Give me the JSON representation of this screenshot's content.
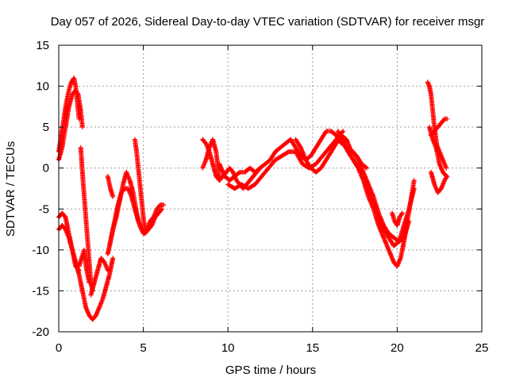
{
  "chart_data": {
    "type": "scatter",
    "title": "Day 057 of 2026, Sidereal Day-to-day VTEC variation (SDTVAR) for receiver msgr",
    "xlabel": "GPS time / hours",
    "ylabel": "SDTVAR / TECUs",
    "xlim": [
      0,
      25
    ],
    "ylim": [
      -20,
      15
    ],
    "xticks": [
      0,
      5,
      10,
      15,
      20,
      25
    ],
    "yticks": [
      -20,
      -15,
      -10,
      -5,
      0,
      5,
      10,
      15
    ],
    "grid": true,
    "marker": "plus",
    "color": "#ff0000",
    "segments": [
      {
        "x": [
          0.0,
          0.2,
          0.4,
          0.6,
          0.8,
          1.0,
          1.15,
          1.3,
          1.4
        ],
        "y": [
          1.0,
          2.5,
          5.0,
          7.5,
          9.0,
          9.5,
          9.0,
          7.0,
          5.0
        ]
      },
      {
        "x": [
          0.0,
          0.15,
          0.3,
          0.45,
          0.6,
          0.75,
          0.9,
          1.0,
          1.1,
          1.2
        ],
        "y": [
          2.0,
          4.0,
          6.0,
          8.0,
          9.5,
          10.5,
          11.0,
          10.0,
          8.0,
          6.0
        ]
      },
      {
        "x": [
          0.0,
          0.2,
          0.4,
          0.6,
          0.8,
          1.0,
          1.2,
          1.4,
          1.6,
          1.8,
          2.0,
          2.2,
          2.4,
          2.6,
          2.8,
          3.0,
          3.2
        ],
        "y": [
          -7.5,
          -7.0,
          -7.5,
          -8.5,
          -10.0,
          -11.5,
          -13.0,
          -15.0,
          -17.0,
          -18.0,
          -18.5,
          -18.0,
          -17.0,
          -16.0,
          -14.5,
          -13.0,
          -11.0
        ]
      },
      {
        "x": [
          0.0,
          0.2,
          0.4,
          0.6,
          0.8,
          1.0,
          1.2
        ],
        "y": [
          -6.0,
          -5.5,
          -6.0,
          -8.0,
          -10.0,
          -12.0,
          -12.5
        ]
      },
      {
        "x": [
          1.2,
          1.35,
          1.5,
          1.65,
          1.8
        ],
        "y": [
          -12.0,
          -11.0,
          -10.0,
          -12.5,
          -14.0
        ]
      },
      {
        "x": [
          1.3,
          1.45,
          1.6,
          1.75,
          1.9,
          2.0
        ],
        "y": [
          2.5,
          -2.0,
          -6.0,
          -10.0,
          -14.0,
          -15.0
        ]
      },
      {
        "x": [
          1.9,
          2.1,
          2.3,
          2.5,
          2.7,
          2.9
        ],
        "y": [
          -15.5,
          -14.0,
          -12.5,
          -11.0,
          -11.5,
          -12.5
        ]
      },
      {
        "x": [
          2.9,
          3.1,
          3.3,
          3.5,
          3.7,
          3.9,
          4.1,
          4.3,
          4.5,
          4.7,
          4.9,
          5.1,
          5.3,
          5.5,
          5.7,
          5.9,
          6.1
        ],
        "y": [
          -10.5,
          -8.5,
          -6.5,
          -4.5,
          -3.0,
          -2.5,
          -2.5,
          -3.5,
          -5.0,
          -6.5,
          -7.5,
          -8.0,
          -7.5,
          -7.0,
          -6.0,
          -5.5,
          -5.0
        ]
      },
      {
        "x": [
          3.0,
          3.2,
          3.4,
          3.6,
          3.8,
          4.0,
          4.2,
          4.4,
          4.6,
          4.8,
          5.0,
          5.2,
          5.4,
          5.6,
          5.8,
          6.0,
          6.2
        ],
        "y": [
          -9.5,
          -7.5,
          -6.0,
          -4.0,
          -2.0,
          -0.5,
          -1.5,
          -3.0,
          -5.5,
          -7.0,
          -8.0,
          -7.5,
          -6.5,
          -6.0,
          -5.0,
          -4.5,
          -4.5
        ]
      },
      {
        "x": [
          2.9,
          3.05,
          3.2
        ],
        "y": [
          -1.0,
          -2.5,
          -3.5
        ]
      },
      {
        "x": [
          4.5,
          4.6,
          4.7,
          4.8,
          4.9,
          5.0,
          5.1
        ],
        "y": [
          3.5,
          2.0,
          0.0,
          -2.0,
          -4.0,
          -6.0,
          -7.5
        ]
      },
      {
        "x": [
          8.5,
          8.7,
          8.9,
          9.1,
          9.3,
          9.5,
          9.7,
          9.9,
          10.1,
          10.3,
          10.5,
          10.7,
          10.9,
          11.1,
          11.3,
          11.5,
          11.7,
          11.9
        ],
        "y": [
          3.5,
          3.0,
          2.0,
          0.5,
          -1.0,
          -1.5,
          -1.0,
          -0.5,
          0.0,
          -0.5,
          -1.5,
          -2.0,
          -2.5,
          -2.0,
          -1.5,
          -1.0,
          -0.5,
          0.0
        ]
      },
      {
        "x": [
          8.5,
          8.7,
          8.9,
          9.1,
          9.3,
          9.5
        ],
        "y": [
          0.0,
          1.0,
          2.5,
          3.5,
          2.0,
          -1.5
        ]
      },
      {
        "x": [
          9.5,
          9.8,
          10.1,
          10.4,
          10.7,
          11.0,
          11.3,
          11.6,
          11.9,
          12.2,
          12.5,
          12.8,
          13.1,
          13.4,
          13.7,
          14.0,
          14.3,
          14.6,
          14.9,
          15.2,
          15.5,
          15.8,
          16.1,
          16.4,
          16.7
        ],
        "y": [
          0.5,
          -1.0,
          -1.5,
          -1.0,
          -0.5,
          -0.5,
          0.0,
          -0.5,
          0.0,
          0.5,
          1.0,
          2.0,
          2.5,
          3.0,
          3.5,
          2.5,
          1.5,
          1.0,
          1.5,
          2.5,
          3.5,
          4.5,
          4.5,
          4.0,
          3.0
        ]
      },
      {
        "x": [
          10.0,
          10.4,
          10.8,
          11.2,
          11.6,
          12.0,
          12.4,
          12.8,
          13.2,
          13.6,
          14.0,
          14.4,
          14.8,
          15.2,
          15.6,
          16.0,
          16.4,
          16.8
        ],
        "y": [
          -2.0,
          -2.5,
          -2.0,
          -2.5,
          -2.0,
          -1.0,
          0.0,
          1.0,
          1.5,
          2.0,
          2.0,
          0.5,
          0.0,
          0.5,
          1.5,
          2.5,
          3.5,
          4.5
        ]
      },
      {
        "x": [
          14.0,
          14.3,
          14.6,
          14.9,
          15.2,
          15.5,
          15.8,
          16.1,
          16.4,
          16.7,
          17.0,
          17.3,
          17.6,
          17.9,
          18.2
        ],
        "y": [
          3.5,
          2.5,
          1.0,
          0.0,
          -0.5,
          0.0,
          1.0,
          2.0,
          3.0,
          4.0,
          3.5,
          2.0,
          1.5,
          0.5,
          0.0
        ]
      },
      {
        "x": [
          16.5,
          16.8,
          17.1,
          17.4,
          17.7,
          18.0,
          18.3,
          18.6,
          18.9,
          19.2,
          19.5,
          19.8,
          20.0,
          20.2,
          20.4,
          20.6,
          20.8,
          21.0
        ],
        "y": [
          4.5,
          3.5,
          2.0,
          1.0,
          0.0,
          -1.5,
          -3.5,
          -5.0,
          -7.0,
          -8.5,
          -10.0,
          -11.5,
          -12.0,
          -11.0,
          -9.0,
          -6.5,
          -4.0,
          -1.5
        ]
      },
      {
        "x": [
          16.8,
          17.1,
          17.4,
          17.7,
          18.0,
          18.3,
          18.6,
          18.9,
          19.2,
          19.5,
          19.8,
          20.1,
          20.4,
          20.7,
          21.0
        ],
        "y": [
          3.0,
          2.0,
          1.0,
          0.0,
          -1.0,
          -2.5,
          -4.0,
          -6.0,
          -7.5,
          -8.5,
          -9.5,
          -9.0,
          -7.0,
          -5.0,
          -2.5
        ]
      },
      {
        "x": [
          19.7,
          19.85,
          20.0,
          20.15,
          20.3
        ],
        "y": [
          -5.5,
          -6.5,
          -7.0,
          -6.0,
          -5.5
        ]
      },
      {
        "x": [
          17.4,
          17.7,
          18.0,
          18.3,
          18.6,
          18.9,
          19.2,
          19.5,
          19.8,
          20.1,
          20.4,
          20.7
        ],
        "y": [
          2.0,
          1.0,
          -0.5,
          -2.0,
          -3.5,
          -5.5,
          -7.0,
          -8.0,
          -8.5,
          -9.0,
          -8.5,
          -6.5
        ]
      },
      {
        "x": [
          21.8,
          21.9,
          22.0,
          22.1,
          22.2,
          22.3,
          22.4
        ],
        "y": [
          10.5,
          10.0,
          9.0,
          7.0,
          5.0,
          3.5,
          2.0
        ]
      },
      {
        "x": [
          21.9,
          22.1,
          22.3,
          22.5,
          22.7,
          22.9
        ],
        "y": [
          5.0,
          3.5,
          2.5,
          0.5,
          -0.5,
          -1.0
        ]
      },
      {
        "x": [
          22.0,
          22.2,
          22.4,
          22.6,
          22.8,
          22.95
        ],
        "y": [
          -0.5,
          -2.0,
          -3.0,
          -2.5,
          -1.5,
          -1.0
        ]
      },
      {
        "x": [
          22.0,
          22.2,
          22.4,
          22.6,
          22.8,
          22.95
        ],
        "y": [
          4.0,
          4.5,
          5.0,
          5.5,
          6.0,
          6.0
        ]
      },
      {
        "x": [
          22.3,
          22.5,
          22.7,
          22.9
        ],
        "y": [
          3.0,
          2.0,
          1.0,
          0.0
        ]
      }
    ]
  }
}
